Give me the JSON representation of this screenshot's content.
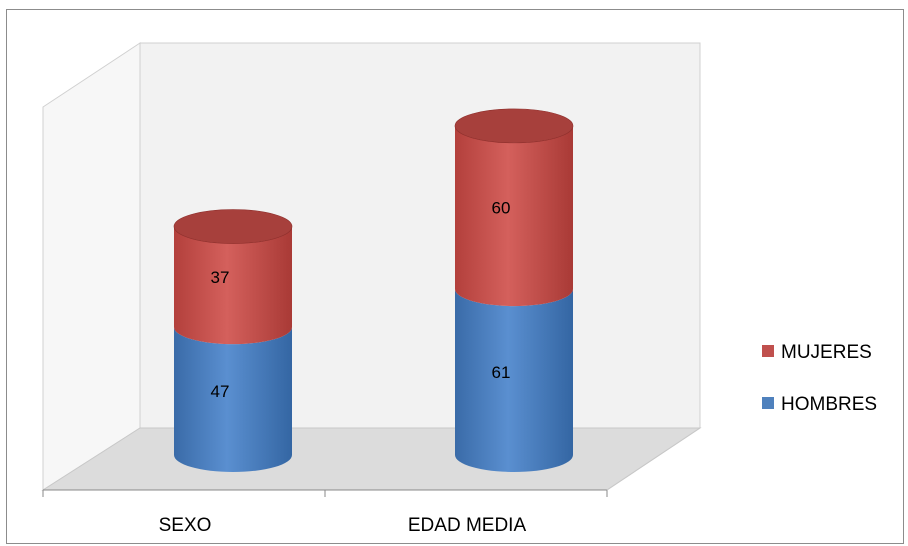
{
  "chart_data": {
    "type": "bar",
    "stacked": true,
    "style": "3d-cylinder",
    "categories": [
      "SEXO",
      "EDAD MEDIA"
    ],
    "series": [
      {
        "name": "HOMBRES",
        "values": [
          47,
          61
        ],
        "color": "#4f81bd"
      },
      {
        "name": "MUJERES",
        "values": [
          37,
          60
        ],
        "color": "#c0504d"
      }
    ],
    "title": "",
    "xlabel": "",
    "ylabel": "",
    "ylim": [
      0,
      140
    ],
    "grid": false,
    "legend_position": "right"
  }
}
